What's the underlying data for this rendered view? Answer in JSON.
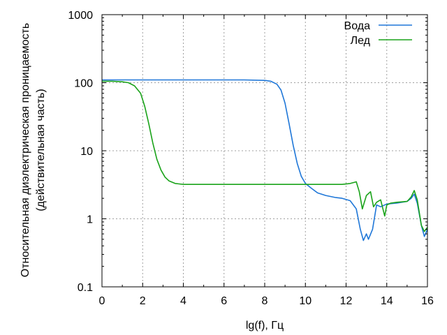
{
  "chart_data": {
    "type": "line",
    "xlabel": "lg(f), Гц",
    "ylabel_line1": "Относительная диэлектрическая проницаемость",
    "ylabel_line2": "(действительная часть)",
    "xlim": [
      0,
      16
    ],
    "ylim": [
      0.1,
      1000
    ],
    "y_scale": "log",
    "grid": true,
    "legend_position": "top-right",
    "x_ticks": [
      0,
      2,
      4,
      6,
      8,
      10,
      12,
      14,
      16
    ],
    "x_tick_labels": [
      "0",
      "2",
      "4",
      "6",
      "8",
      "10",
      "12",
      "14",
      "16"
    ],
    "y_ticks": [
      0.1,
      1,
      10,
      100,
      1000
    ],
    "y_tick_labels": [
      "0.1",
      "1",
      "10",
      "100",
      "1000"
    ],
    "series": [
      {
        "name": "Вода",
        "color": "#1f77d8",
        "x": [
          0,
          1,
          2,
          3,
          4,
          5,
          6,
          7,
          8,
          8.3,
          8.6,
          8.8,
          9.0,
          9.2,
          9.4,
          9.6,
          9.8,
          10.0,
          10.3,
          10.6,
          11.0,
          11.5,
          11.8,
          12.2,
          12.5,
          12.7,
          12.85,
          13.0,
          13.1,
          13.3,
          13.5,
          13.7,
          14.0,
          14.5,
          15.0,
          15.2,
          15.35,
          15.5,
          15.7,
          15.85,
          16.0
        ],
        "y": [
          110,
          110,
          110,
          110,
          110,
          110,
          110,
          110,
          108,
          105,
          95,
          78,
          50,
          25,
          12,
          6.5,
          4.2,
          3.3,
          2.8,
          2.4,
          2.2,
          2.05,
          2.0,
          1.85,
          1.4,
          0.7,
          0.48,
          0.6,
          0.5,
          0.7,
          1.6,
          1.5,
          1.65,
          1.7,
          1.8,
          2.0,
          2.3,
          1.7,
          0.8,
          0.55,
          0.7
        ]
      },
      {
        "name": "Лед",
        "color": "#1aa31a",
        "x": [
          0,
          0.5,
          1.0,
          1.3,
          1.6,
          1.9,
          2.1,
          2.3,
          2.5,
          2.7,
          2.9,
          3.1,
          3.3,
          3.6,
          4.0,
          5.0,
          6.0,
          7.0,
          8.0,
          9.0,
          10.0,
          11.0,
          11.8,
          12.2,
          12.5,
          12.65,
          12.8,
          13.0,
          13.2,
          13.35,
          13.5,
          13.7,
          13.9,
          14.0,
          14.2,
          14.5,
          15.0,
          15.2,
          15.35,
          15.5,
          15.7,
          15.85,
          16.0
        ],
        "y": [
          105,
          105,
          103,
          100,
          90,
          70,
          45,
          25,
          13,
          7.5,
          5.2,
          4.1,
          3.6,
          3.3,
          3.2,
          3.2,
          3.2,
          3.2,
          3.2,
          3.2,
          3.2,
          3.2,
          3.2,
          3.3,
          3.5,
          2.5,
          1.4,
          2.2,
          2.5,
          1.5,
          1.75,
          1.9,
          1.1,
          1.6,
          1.7,
          1.75,
          1.8,
          2.1,
          2.6,
          1.9,
          0.8,
          0.65,
          0.75
        ]
      }
    ]
  }
}
